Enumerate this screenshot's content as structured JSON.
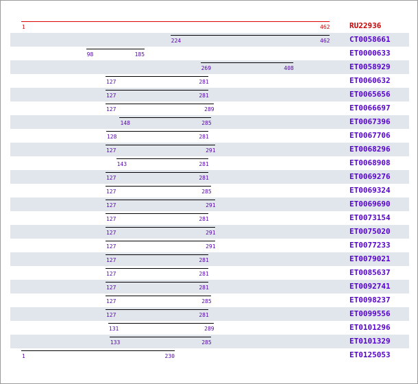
{
  "axis": {
    "min": 1,
    "max": 462
  },
  "colors": {
    "reference": "#e00000",
    "hit": "#000000",
    "hit_text": "#5500cc",
    "row_shade": "#e1e5ec"
  },
  "rows": [
    {
      "id": "RU22936",
      "start": 1,
      "end": 462,
      "reference": true
    },
    {
      "id": "CT0058661",
      "start": 224,
      "end": 462
    },
    {
      "id": "ET0000633",
      "start": 98,
      "end": 185
    },
    {
      "id": "ET0058929",
      "start": 269,
      "end": 408
    },
    {
      "id": "ET0060632",
      "start": 127,
      "end": 281
    },
    {
      "id": "ET0065656",
      "start": 127,
      "end": 281
    },
    {
      "id": "ET0066697",
      "start": 127,
      "end": 289
    },
    {
      "id": "ET0067396",
      "start": 148,
      "end": 285
    },
    {
      "id": "ET0067706",
      "start": 128,
      "end": 281
    },
    {
      "id": "ET0068296",
      "start": 127,
      "end": 291
    },
    {
      "id": "ET0068908",
      "start": 143,
      "end": 281
    },
    {
      "id": "ET0069276",
      "start": 127,
      "end": 281
    },
    {
      "id": "ET0069324",
      "start": 127,
      "end": 285
    },
    {
      "id": "ET0069690",
      "start": 127,
      "end": 291
    },
    {
      "id": "ET0073154",
      "start": 127,
      "end": 281
    },
    {
      "id": "ET0075020",
      "start": 127,
      "end": 291
    },
    {
      "id": "ET0077233",
      "start": 127,
      "end": 291
    },
    {
      "id": "ET0079021",
      "start": 127,
      "end": 281
    },
    {
      "id": "ET0085637",
      "start": 127,
      "end": 281
    },
    {
      "id": "ET0092741",
      "start": 127,
      "end": 281
    },
    {
      "id": "ET0098237",
      "start": 127,
      "end": 285
    },
    {
      "id": "ET0099556",
      "start": 127,
      "end": 281
    },
    {
      "id": "ET0101296",
      "start": 131,
      "end": 289
    },
    {
      "id": "ET0101329",
      "start": 133,
      "end": 285
    },
    {
      "id": "ET0125053",
      "start": 1,
      "end": 230
    }
  ]
}
